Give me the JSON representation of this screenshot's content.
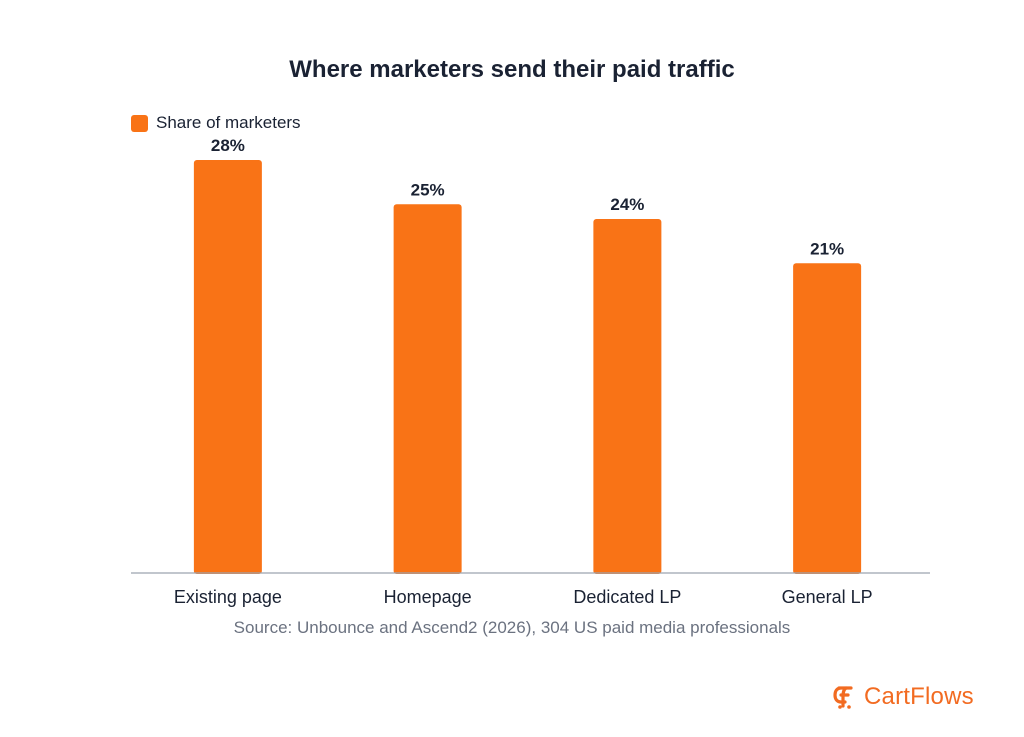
{
  "title": "Where marketers send their paid traffic",
  "source": "Source: Unbounce and Ascend2 (2026), 304 US paid media professionals",
  "brand": {
    "name": "CartFlows",
    "icon": "cartflows-logo-icon",
    "color": "#f26b21"
  },
  "colors": {
    "bar": "#f97316",
    "axis": "#9ca3af",
    "text": "#1a2233"
  },
  "chart_data": {
    "type": "bar",
    "title": "Where marketers send their paid traffic",
    "categories": [
      "Existing page",
      "Homepage",
      "Dedicated LP",
      "General LP"
    ],
    "series": [
      {
        "name": "Share of marketers",
        "values": [
          28,
          25,
          24,
          21
        ],
        "labels": [
          "28%",
          "25%",
          "24%",
          "21%"
        ]
      }
    ],
    "ylim": [
      0,
      28
    ],
    "xlabel": "",
    "ylabel": "",
    "grid": false,
    "legend_position": "top-left"
  }
}
